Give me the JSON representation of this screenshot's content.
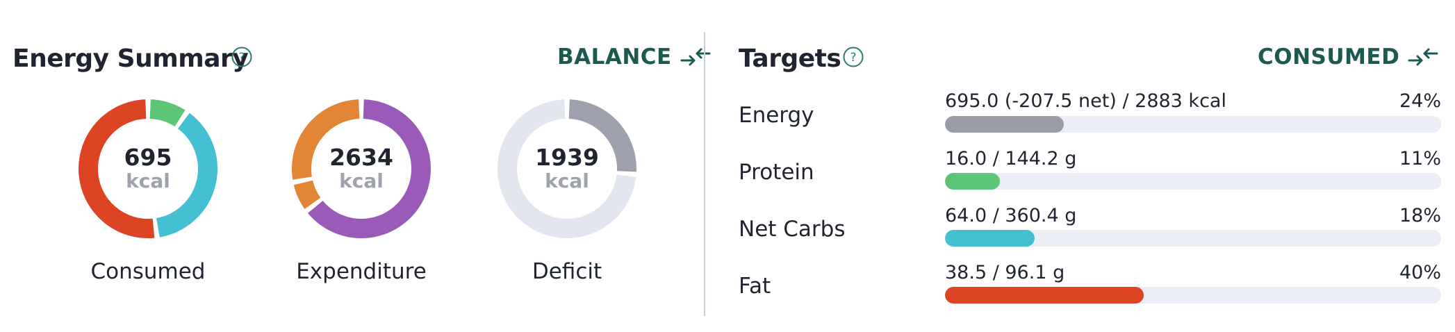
{
  "energy_summary": {
    "title": "Energy Summary",
    "help_icon": "question-circle-icon",
    "mode_label": "BALANCE",
    "mode_icon": "arrows-collapse-icon",
    "donuts": [
      {
        "value": "695",
        "unit": "kcal",
        "caption": "Consumed",
        "segments": [
          {
            "name": "protein",
            "fraction": 0.092,
            "color": "#5cc576"
          },
          {
            "name": "carbs",
            "fraction": 0.368,
            "color": "#45bfd2"
          },
          {
            "name": "fat",
            "fraction": 0.5,
            "color": "#dd4424"
          }
        ]
      },
      {
        "value": "2634",
        "unit": "kcal",
        "caption": "Expenditure",
        "segments": [
          {
            "name": "purple",
            "fraction": 0.62,
            "color": "#9a5bb8"
          },
          {
            "name": "orange-small",
            "fraction": 0.07,
            "color": "#e28535"
          },
          {
            "name": "orange",
            "fraction": 0.27,
            "color": "#e28535"
          }
        ]
      },
      {
        "value": "1939",
        "unit": "kcal",
        "caption": "Deficit",
        "segments": [
          {
            "name": "deficit",
            "fraction": 0.263,
            "color": "#9ea1ad"
          },
          {
            "name": "remainder",
            "fraction": 0.737,
            "color": "#e3e5ee"
          }
        ]
      }
    ]
  },
  "targets": {
    "title": "Targets",
    "help_icon": "question-circle-icon",
    "mode_label": "CONSUMED",
    "mode_icon": "arrows-collapse-icon",
    "rows": [
      {
        "label": "Energy",
        "amount": "695.0 (-207.5 net) / 2883 kcal",
        "percent": "24%",
        "progress": 0.24,
        "color": "#9a9ca8"
      },
      {
        "label": "Protein",
        "amount": "16.0 / 144.2 g",
        "percent": "11%",
        "progress": 0.11,
        "color": "#5cc576"
      },
      {
        "label": "Net Carbs",
        "amount": "64.0 / 360.4 g",
        "percent": "18%",
        "progress": 0.18,
        "color": "#45bfd2"
      },
      {
        "label": "Fat",
        "amount": "38.5 / 96.1 g",
        "percent": "40%",
        "progress": 0.4,
        "color": "#dd4424"
      }
    ]
  }
}
